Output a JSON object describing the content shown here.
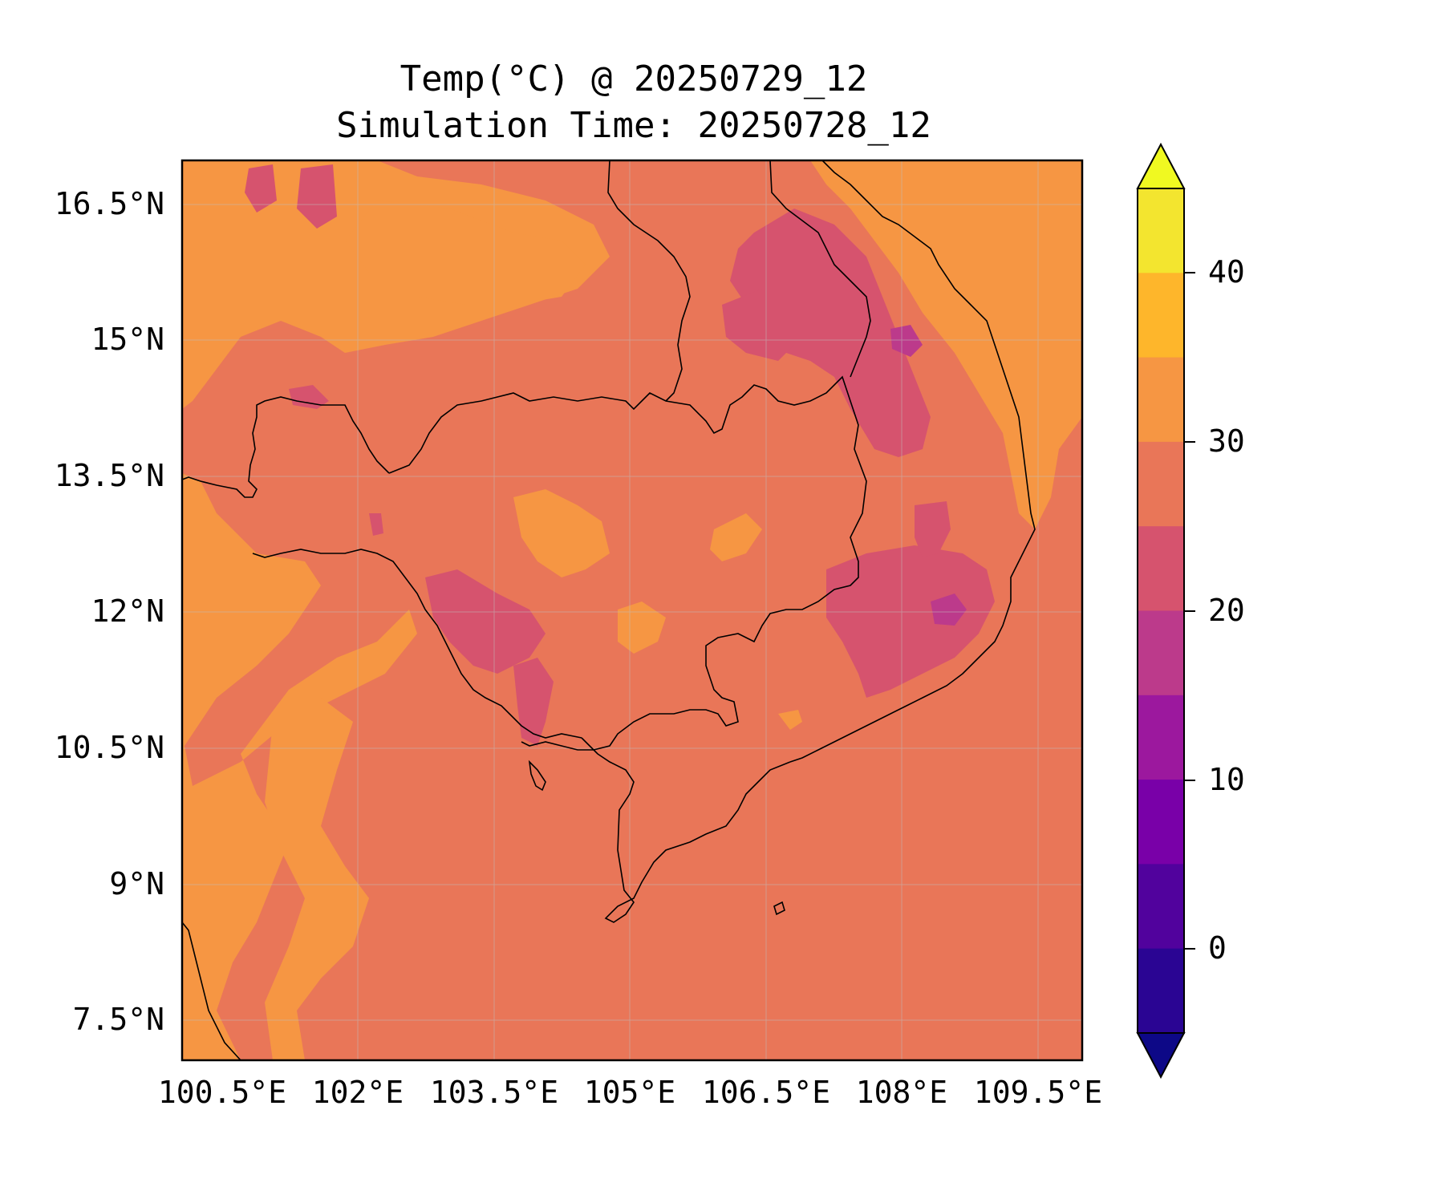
{
  "title": {
    "line1": "Temp(°C) @ 20250729_12",
    "line2": "Simulation Time: 20250728_12"
  },
  "map": {
    "x_ticks": [
      "100.5°E",
      "102°E",
      "103.5°E",
      "105°E",
      "106.5°E",
      "108°E",
      "109.5°E"
    ],
    "y_ticks": [
      "16.5°N",
      "15°N",
      "13.5°N",
      "12°N",
      "10.5°N",
      "9°N",
      "7.5°N"
    ],
    "background_color": "#e97658",
    "contour_colors": {
      "warm_30_35": "#f69643",
      "cool_20_25": "#d6536e",
      "cooler_15_20": "#bc3a8b"
    }
  },
  "colorbar": {
    "tick_labels": [
      "40",
      "30",
      "20",
      "10",
      "0"
    ],
    "levels": [
      "#f3e52f",
      "#feb62b",
      "#f69643",
      "#e97658",
      "#d6536e",
      "#bc3a8b",
      "#9c189e",
      "#7900a8",
      "#51029d",
      "#2a0593"
    ],
    "over_color": "#f0f921",
    "under_color": "#0d0887"
  }
}
